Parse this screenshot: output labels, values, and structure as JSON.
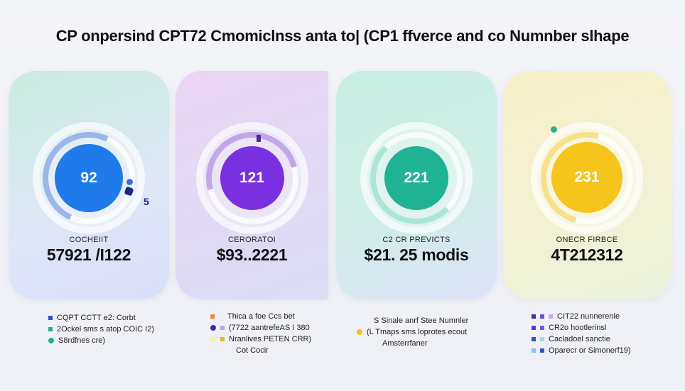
{
  "title": "CP onpersind CPT72 Cmomiclnss anta to| (CP1 ffverce and co Numnber slhape",
  "colors": {
    "card1_accent": "#1f7bea",
    "card2_accent": "#7a30e0",
    "card3_accent": "#1fb393",
    "card4_accent": "#f6c51c"
  },
  "cards": [
    {
      "center": "92",
      "label": "COCHEIIT",
      "value": "57921 /I122",
      "extra": "5"
    },
    {
      "center": "121",
      "label": "CERORATOI",
      "value": "$93..2221",
      "extra": ""
    },
    {
      "center": "221",
      "label": "C2 CR PREVICTS",
      "value": "$21. 25 modis",
      "extra": ""
    },
    {
      "center": "231",
      "label": "ONECR FIRBCE",
      "value": "4T212312",
      "extra": ""
    }
  ],
  "legends": [
    {
      "items": [
        "CQPT CCTT e2: Corbt",
        "2Ockel sms s atop COIC I2)",
        "S8rdfnes cre)"
      ]
    },
    {
      "items": [
        "Thica a foe Ccs bet",
        "(7722 aantrefeAS I 380",
        "Nranlives PETEN CRR)",
        "Cot Cocir"
      ]
    },
    {
      "items": [
        "S Sinale anrf Stee Numnler",
        "(L Tmaps sms loprotes ecout",
        "Amsterrfaner"
      ]
    },
    {
      "items": [
        "CIT22 nunnerenle",
        "CR2o hootlerinsl",
        "Cacladoel sanctie",
        "Oparecr or Simonerf19)"
      ]
    }
  ]
}
